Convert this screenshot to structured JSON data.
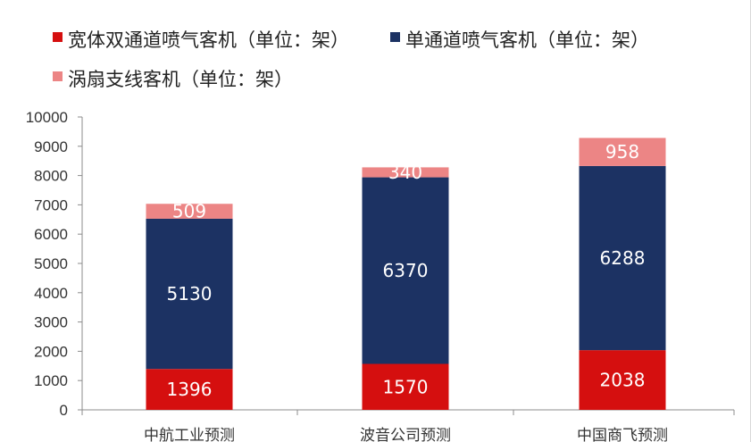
{
  "chart_data": {
    "type": "bar",
    "stacked": true,
    "categories": [
      "中航工业预测",
      "波音公司预测",
      "中国商飞预测"
    ],
    "series": [
      {
        "name": "宽体双通道喷气客机（单位：架）",
        "color": "#d50f0f",
        "values": [
          1396,
          1570,
          2038
        ]
      },
      {
        "name": "单通道喷气客机（单位：架）",
        "color": "#1c3263",
        "values": [
          5130,
          6370,
          6288
        ]
      },
      {
        "name": "涡扇支线客机（单位：架）",
        "color": "#ec8585",
        "values": [
          509,
          340,
          958
        ]
      }
    ],
    "ylim": [
      0,
      10000
    ],
    "yticks": [
      "0",
      "1000",
      "2000",
      "3000",
      "4000",
      "5000",
      "6000",
      "7000",
      "8000",
      "9000",
      "10000"
    ],
    "grid": false,
    "legend": "top-left",
    "title": "",
    "xlabel": "",
    "ylabel": ""
  }
}
